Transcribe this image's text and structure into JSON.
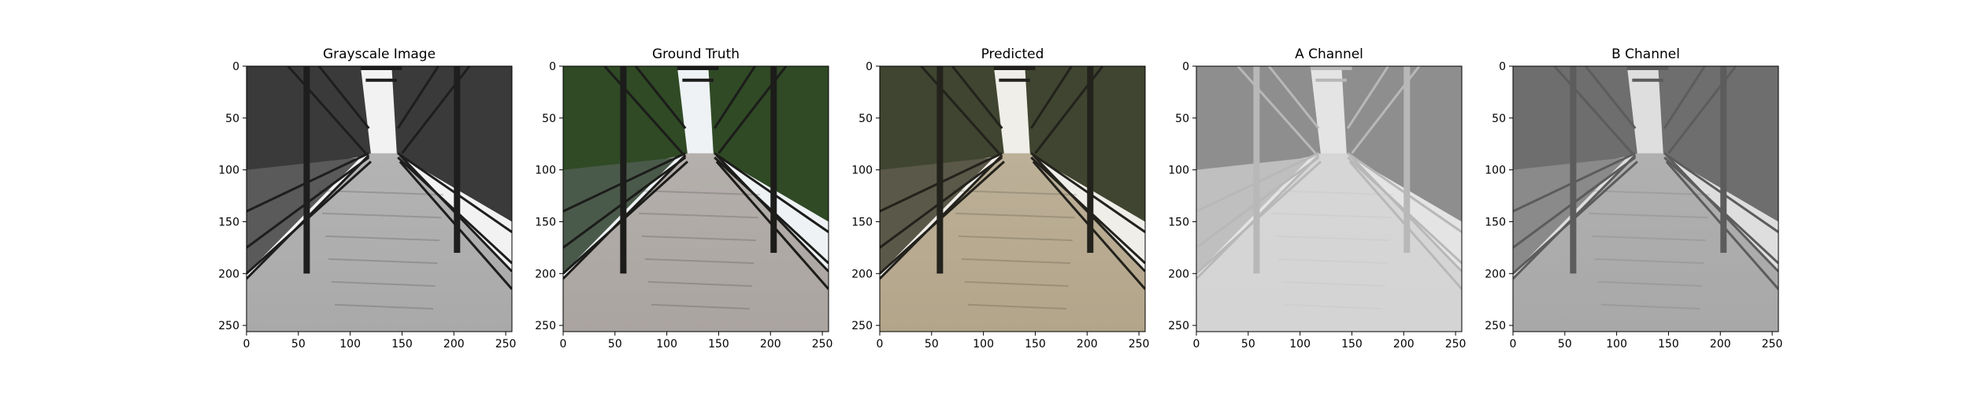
{
  "figure": {
    "panels": [
      {
        "title": "Grayscale Image",
        "image_description": "grayscale photo of a steel truss bridge with a concrete deck, trees and river on both sides",
        "colors": {
          "sky": "#f2f2f2",
          "foliage": "#3a3a3a",
          "deck": "#a9a9a9",
          "water": "#5a5a5a",
          "truss": "#1e1e1e"
        }
      },
      {
        "title": "Ground Truth",
        "image_description": "color photo of a steel truss bridge with green trees and river",
        "colors": {
          "sky": "#eef2f4",
          "foliage": "#2f4a25",
          "deck": "#aaa4a0",
          "water": "#4a5a4a",
          "truss": "#1c1c1a"
        }
      },
      {
        "title": "Predicted",
        "image_description": "model-colorized photo of the bridge with warm sepia/olive tones",
        "colors": {
          "sky": "#f0eee8",
          "foliage": "#3f4530",
          "deck": "#b3a58a",
          "water": "#5a5848",
          "truss": "#23221c"
        }
      },
      {
        "title": "A Channel",
        "image_description": "grayscale visualization of the predicted A chroma channel, mostly light gray",
        "colors": {
          "sky": "#e4e4e4",
          "foliage": "#8e8e8e",
          "deck": "#d4d4d4",
          "water": "#bfbfbf",
          "truss": "#b8b8b8"
        }
      },
      {
        "title": "B Channel",
        "image_description": "grayscale visualization of the predicted B chroma channel, medium gray",
        "colors": {
          "sky": "#dedede",
          "foliage": "#6e6e6e",
          "deck": "#a8a8a8",
          "water": "#8a8a8a",
          "truss": "#5c5c5c"
        }
      }
    ],
    "x_ticks": [
      "0",
      "50",
      "100",
      "150",
      "200",
      "250"
    ],
    "y_ticks": [
      "0",
      "50",
      "100",
      "150",
      "200",
      "250"
    ],
    "axis_range": [
      0,
      256
    ]
  }
}
